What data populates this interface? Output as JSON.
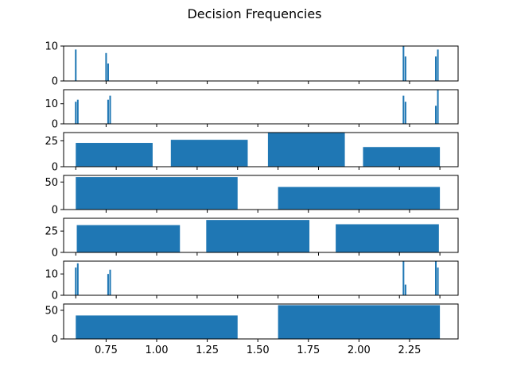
{
  "figure": {
    "title": "Decision Frequencies"
  },
  "chart_data": [
    {
      "type": "bar",
      "x": [
        0.6,
        0.75,
        0.76,
        2.22,
        2.23,
        2.38,
        2.39
      ],
      "values": [
        9,
        8,
        5,
        10,
        7,
        7,
        9
      ],
      "ylim": [
        0,
        10
      ],
      "yticks": [
        0,
        10
      ],
      "xlim": [
        0.54,
        2.49
      ],
      "xticks": [
        0.75,
        1.0,
        1.25,
        1.5,
        1.75,
        2.0,
        2.25
      ],
      "xtick_labels": [],
      "bar_width": 0.008
    },
    {
      "type": "bar",
      "x": [
        0.6,
        0.61,
        0.76,
        0.77,
        2.22,
        2.23,
        2.38,
        2.39
      ],
      "values": [
        11,
        12,
        12,
        14,
        14,
        11,
        9,
        17
      ],
      "ylim": [
        0,
        17
      ],
      "yticks": [
        0,
        10
      ],
      "xlim": [
        0.54,
        2.49
      ],
      "xticks": [
        0.75,
        1.0,
        1.25,
        1.5,
        1.75,
        2.0,
        2.25
      ],
      "xtick_labels": [],
      "bar_width": 0.008
    },
    {
      "type": "bar",
      "x": [
        0.79,
        1.26,
        1.74,
        2.21
      ],
      "values": [
        23,
        26,
        33,
        19
      ],
      "ylim": [
        0,
        33
      ],
      "yticks": [
        0,
        25
      ],
      "xlim": [
        0.54,
        2.49
      ],
      "xticks": [
        0.6,
        0.8,
        1.0,
        1.2,
        1.4,
        1.6,
        1.8,
        2.0,
        2.2,
        2.4
      ],
      "xtick_labels": [],
      "bar_width": 0.38
    },
    {
      "type": "bar",
      "x": [
        1.0,
        2.0
      ],
      "values": [
        59,
        41
      ],
      "ylim": [
        0,
        62
      ],
      "yticks": [
        0,
        50
      ],
      "xlim": [
        0.54,
        2.49
      ],
      "xticks": [
        0.75,
        1.0,
        1.25,
        1.5,
        1.75,
        2.0,
        2.25
      ],
      "xtick_labels": [],
      "bar_width": 0.8
    },
    {
      "type": "bar",
      "x": [
        0.86,
        1.5,
        2.14
      ],
      "values": [
        32,
        38,
        33
      ],
      "ylim": [
        0,
        40
      ],
      "yticks": [
        0,
        25
      ],
      "xlim": [
        0.54,
        2.49
      ],
      "xticks": [
        0.6,
        0.8,
        1.0,
        1.2,
        1.4,
        1.6,
        1.8,
        2.0,
        2.2,
        2.4
      ],
      "xtick_labels": [],
      "bar_width": 0.51
    },
    {
      "type": "bar",
      "x": [
        0.6,
        0.61,
        0.76,
        0.77,
        2.22,
        2.23,
        2.38,
        2.39
      ],
      "values": [
        13,
        15,
        10,
        12,
        16,
        5,
        16,
        13
      ],
      "ylim": [
        0,
        16
      ],
      "yticks": [
        0,
        10
      ],
      "xlim": [
        0.54,
        2.49
      ],
      "xticks": [
        0.6,
        0.8,
        1.0,
        1.2,
        1.4,
        1.6,
        1.8,
        2.0,
        2.2,
        2.4
      ],
      "xtick_labels": [],
      "bar_width": 0.008
    },
    {
      "type": "bar",
      "x": [
        1.0,
        2.0
      ],
      "values": [
        41,
        59
      ],
      "ylim": [
        0,
        61
      ],
      "yticks": [
        0,
        50
      ],
      "xlim": [
        0.54,
        2.49
      ],
      "xticks": [
        0.75,
        1.0,
        1.25,
        1.5,
        1.75,
        2.0,
        2.25
      ],
      "xtick_labels": [
        "0.75",
        "1.00",
        "1.25",
        "1.50",
        "1.75",
        "2.00",
        "2.25"
      ],
      "bar_width": 0.8
    }
  ],
  "colors": {
    "bar": "#1f77b4",
    "axis": "#000000",
    "background": "#ffffff"
  }
}
